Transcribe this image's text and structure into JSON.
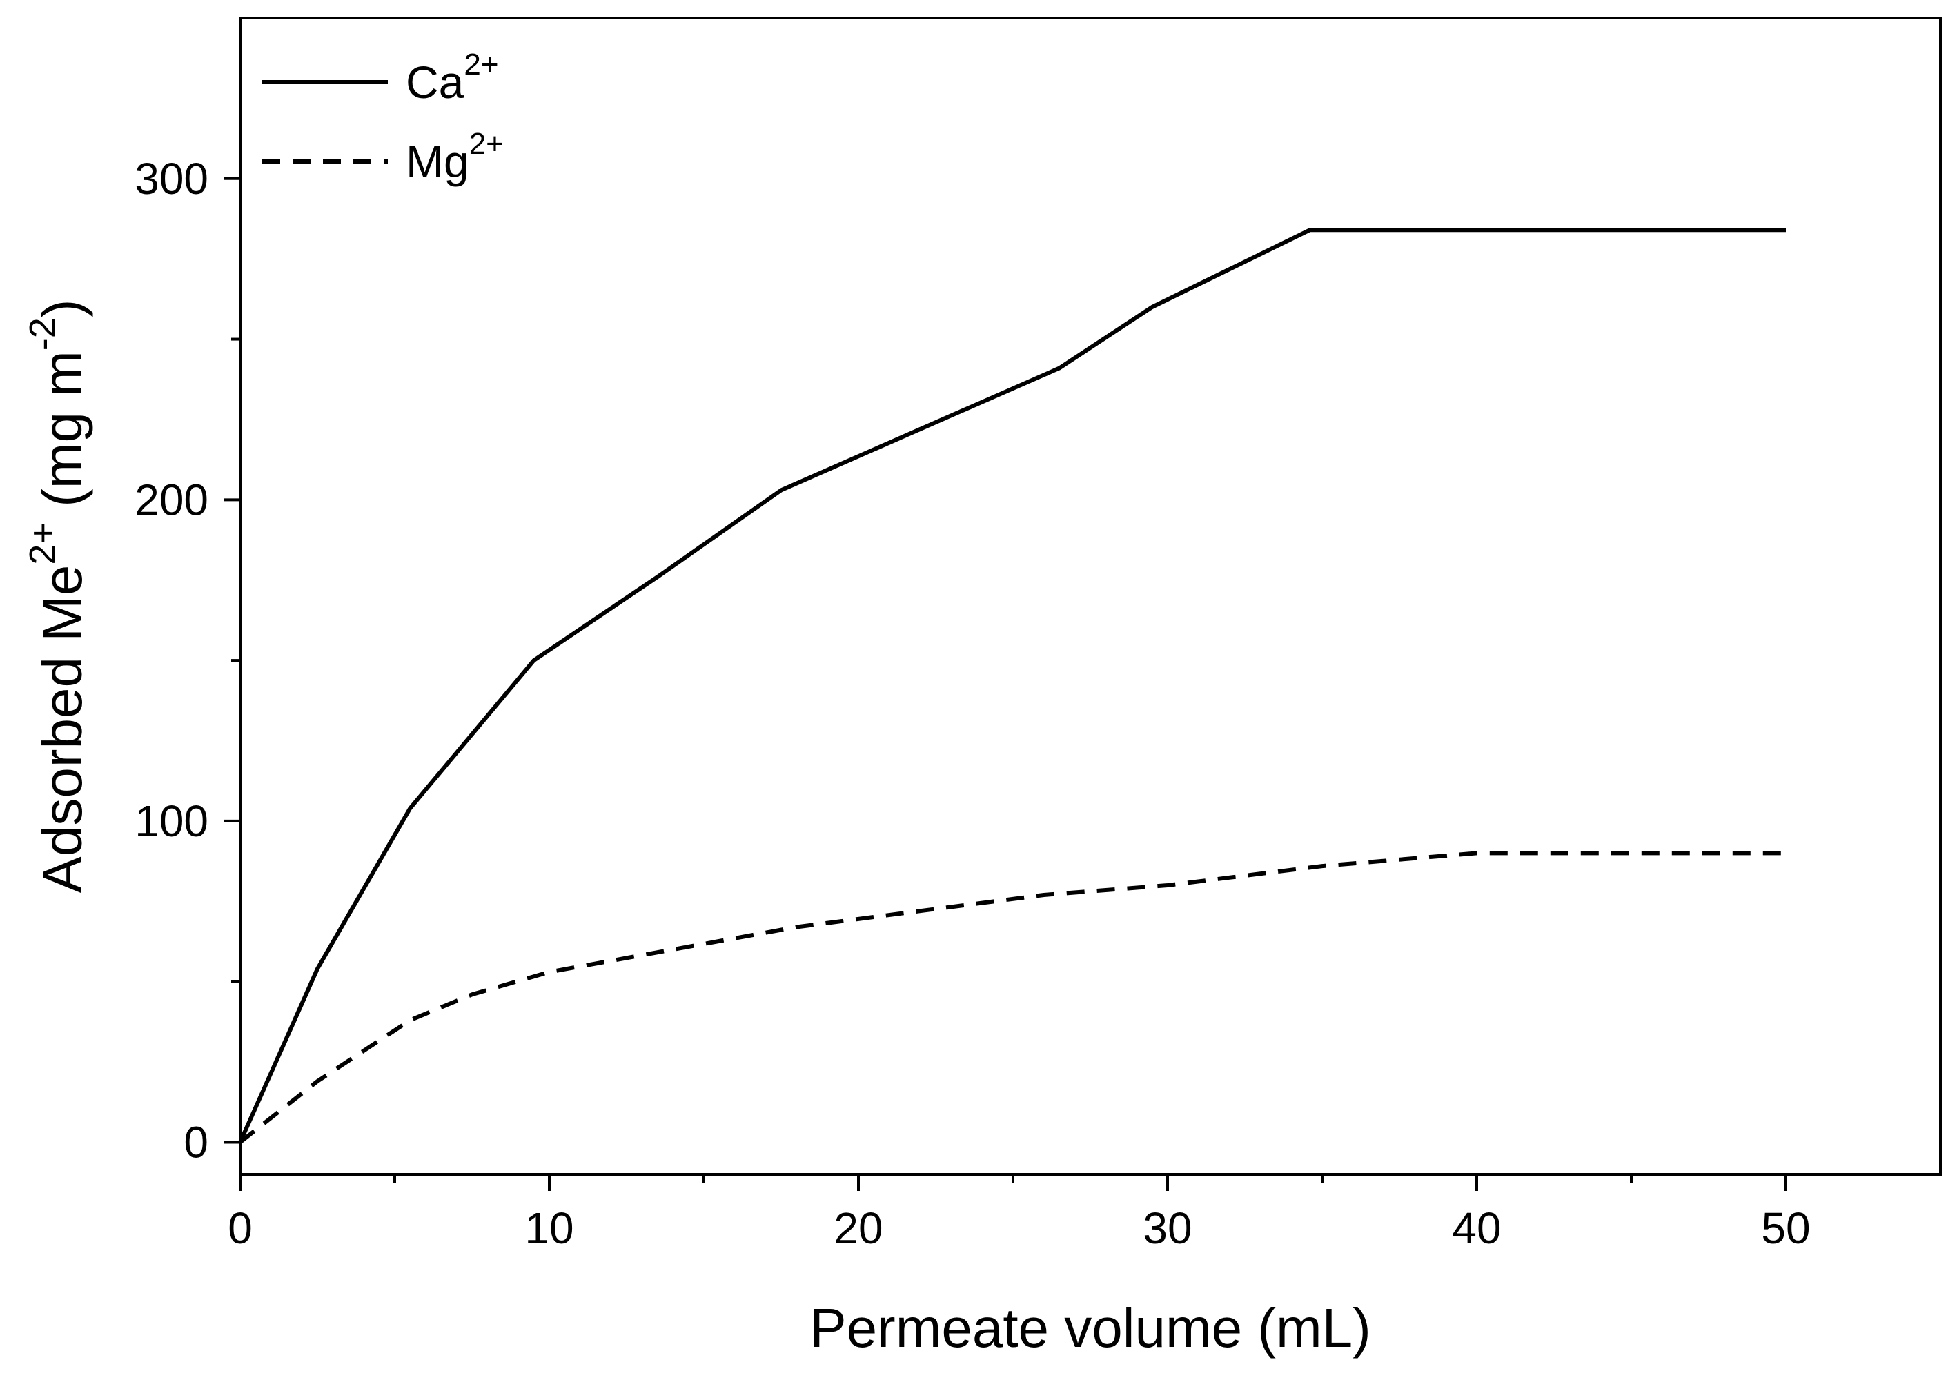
{
  "chart_data": {
    "type": "line",
    "title": "",
    "xlabel": "Permeate volume (mL)",
    "ylabel": {
      "prefix": "Adsorbed Me",
      "sup1": "2+",
      "middle": " (mg m",
      "sup2": "-2",
      "suffix": ")"
    },
    "xlim": [
      0,
      55
    ],
    "ylim": [
      -10,
      350
    ],
    "x_ticks": [
      0,
      10,
      20,
      30,
      40,
      50
    ],
    "x_tick_labels": [
      "0",
      "10",
      "20",
      "30",
      "40",
      "50"
    ],
    "y_ticks": [
      0,
      100,
      200,
      300
    ],
    "y_tick_labels": [
      "0",
      "100",
      "200",
      "300"
    ],
    "grid": false,
    "legend_position": "top-left",
    "series": [
      {
        "name": "Ca",
        "charge": "2+",
        "line_style": "solid",
        "color": "#000000",
        "x": [
          0,
          2.5,
          5.5,
          9.5,
          13.5,
          17.5,
          22,
          26.5,
          29.5,
          34.6,
          50
        ],
        "y": [
          0,
          54,
          104,
          150,
          176,
          203,
          222,
          241,
          260,
          284,
          284
        ]
      },
      {
        "name": "Mg",
        "charge": "2+",
        "line_style": "dashed",
        "color": "#000000",
        "x": [
          0,
          2.5,
          5.5,
          7.5,
          10,
          14,
          18,
          22,
          26,
          30,
          35,
          40,
          50
        ],
        "y": [
          0,
          19,
          38,
          46,
          53,
          60,
          67,
          72,
          77,
          80,
          86,
          90,
          90
        ]
      }
    ]
  }
}
